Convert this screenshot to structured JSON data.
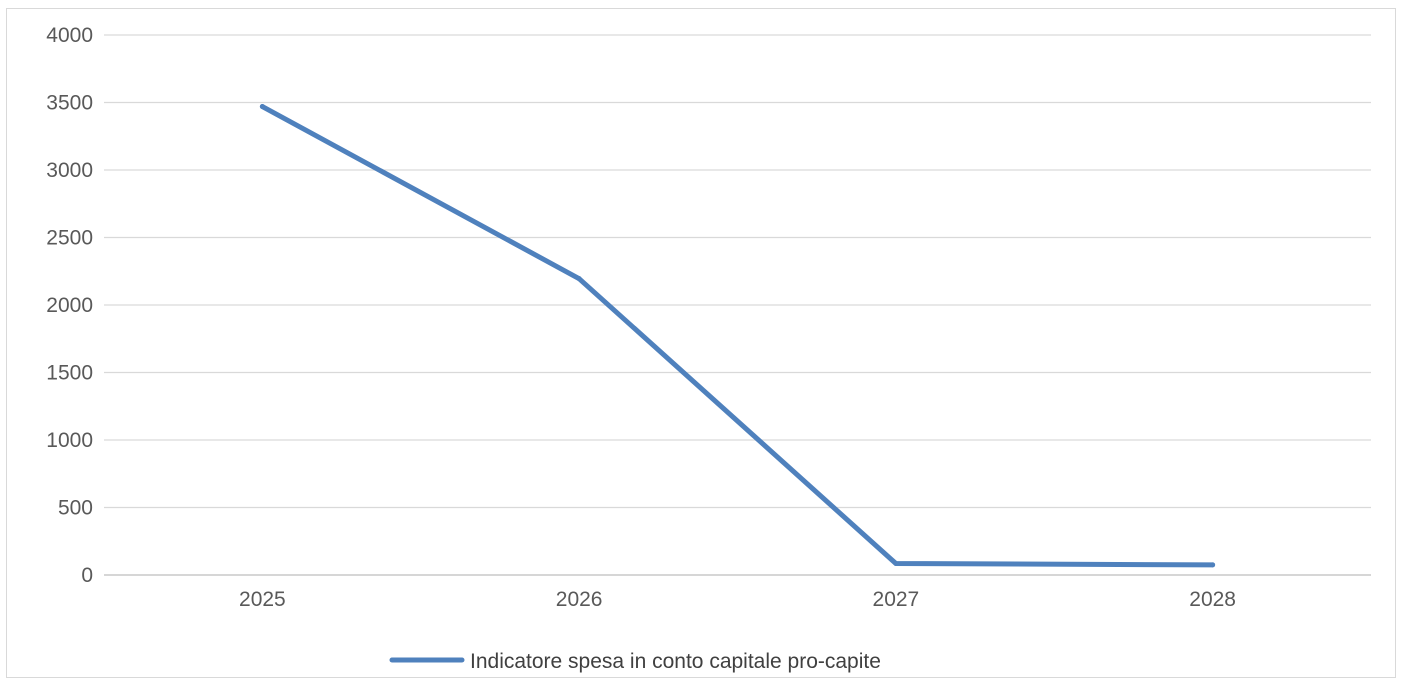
{
  "chart_data": {
    "type": "line",
    "title": "",
    "xlabel": "",
    "ylabel": "",
    "categories": [
      "2025",
      "2026",
      "2027",
      "2028"
    ],
    "series": [
      {
        "name": "Indicatore spesa in conto capitale pro-capite",
        "values": [
          3470,
          2195,
          85,
          75
        ],
        "color": "#4f81bd"
      }
    ],
    "ylim": [
      0,
      4000
    ],
    "yticks": [
      "0",
      "500",
      "1000",
      "1500",
      "2000",
      "2500",
      "3000",
      "3500",
      "4000"
    ],
    "grid": true,
    "legend_position": "bottom"
  }
}
